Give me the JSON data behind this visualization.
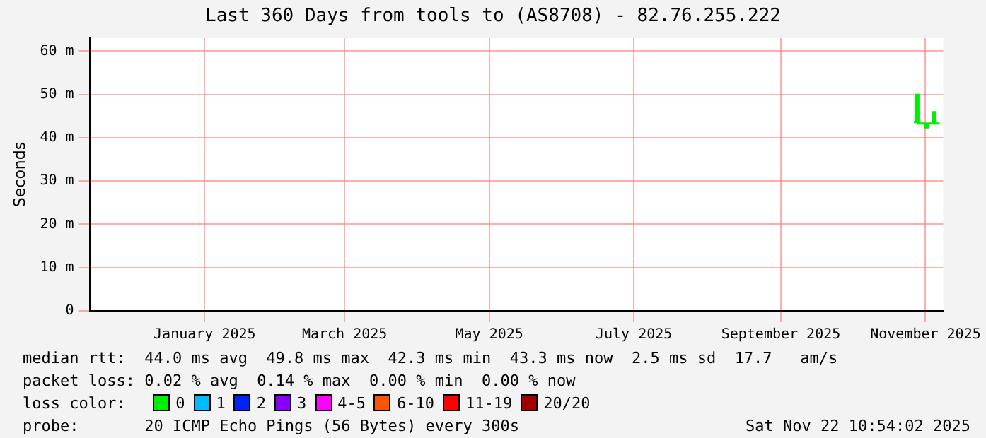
{
  "chart_data": {
    "type": "step",
    "title": "Last 360 Days from tools to (AS8708) - 82.76.255.222",
    "ylabel": "Seconds",
    "x": [
      "2025-11-10",
      "2025-11-11",
      "2025-11-12",
      "2025-11-14",
      "2025-11-15",
      "2025-11-16",
      "2025-11-17",
      "2025-11-18",
      "2025-11-19",
      "2025-11-21"
    ],
    "xlim": [
      "2024-11-27T10:54",
      "2025-11-22T10:54"
    ],
    "xticks": [
      {
        "value": "2025-01-15",
        "label": "January 2025"
      },
      {
        "value": "2025-03-15",
        "label": "March 2025"
      },
      {
        "value": "2025-05-15",
        "label": "May 2025"
      },
      {
        "value": "2025-07-15",
        "label": "July 2025"
      },
      {
        "value": "2025-09-15",
        "label": "September 2025"
      },
      {
        "value": "2025-11-15",
        "label": "November 2025"
      }
    ],
    "ylim": [
      0,
      63
    ],
    "yticks": [
      0,
      {
        "value": 10,
        "label": "10 m"
      },
      {
        "value": 20,
        "label": "20 m"
      },
      {
        "value": 30,
        "label": "30 m"
      },
      {
        "value": 40,
        "label": "40 m"
      },
      {
        "value": 50,
        "label": "50 m"
      },
      {
        "value": 60,
        "label": "60 m"
      }
    ],
    "grid": true,
    "legend": "bottom",
    "legend_title": "loss color:",
    "marker": "none",
    "series": [
      {
        "name": "0",
        "color": "#00ee00",
        "values": [
          43.6,
          49.9,
          43.3,
          43.3,
          42.4,
          43.3,
          43.3,
          45.9,
          43.3,
          43.3
        ]
      },
      {
        "name": "1",
        "color": "#00bbff",
        "values": [
          null,
          null,
          null,
          null,
          null,
          null,
          null,
          null,
          null,
          null
        ]
      },
      {
        "name": "2",
        "color": "#0022ff",
        "values": [
          null,
          null,
          null,
          null,
          null,
          null,
          null,
          null,
          null,
          null
        ]
      },
      {
        "name": "3",
        "color": "#8a00ff",
        "values": [
          null,
          null,
          null,
          null,
          null,
          null,
          null,
          null,
          null,
          null
        ]
      },
      {
        "name": "4-5",
        "color": "#ff00ff",
        "values": [
          null,
          null,
          null,
          null,
          null,
          null,
          null,
          null,
          null,
          null
        ]
      },
      {
        "name": "6-10",
        "color": "#ff5500",
        "values": [
          null,
          null,
          null,
          null,
          null,
          null,
          null,
          null,
          null,
          null
        ]
      },
      {
        "name": "11-19",
        "color": "#ff0000",
        "values": [
          null,
          null,
          null,
          null,
          null,
          null,
          null,
          null,
          null,
          null
        ]
      },
      {
        "name": "20/20",
        "color": "#a10000",
        "values": [
          null,
          null,
          null,
          null,
          null,
          null,
          null,
          null,
          null,
          null
        ]
      }
    ],
    "annotations": [
      "median rtt:  44.0 ms avg  49.8 ms max  42.3 ms min  43.3 ms now  2.5 ms sd  17.7   am/s",
      "packet loss: 0.02 % avg  0.14 % max  0.00 % min  0.00 % now",
      "probe:       20 ICMP Echo Pings (56 Bytes) every 300s",
      "Sat Nov 22 10:54:02 2025"
    ]
  }
}
